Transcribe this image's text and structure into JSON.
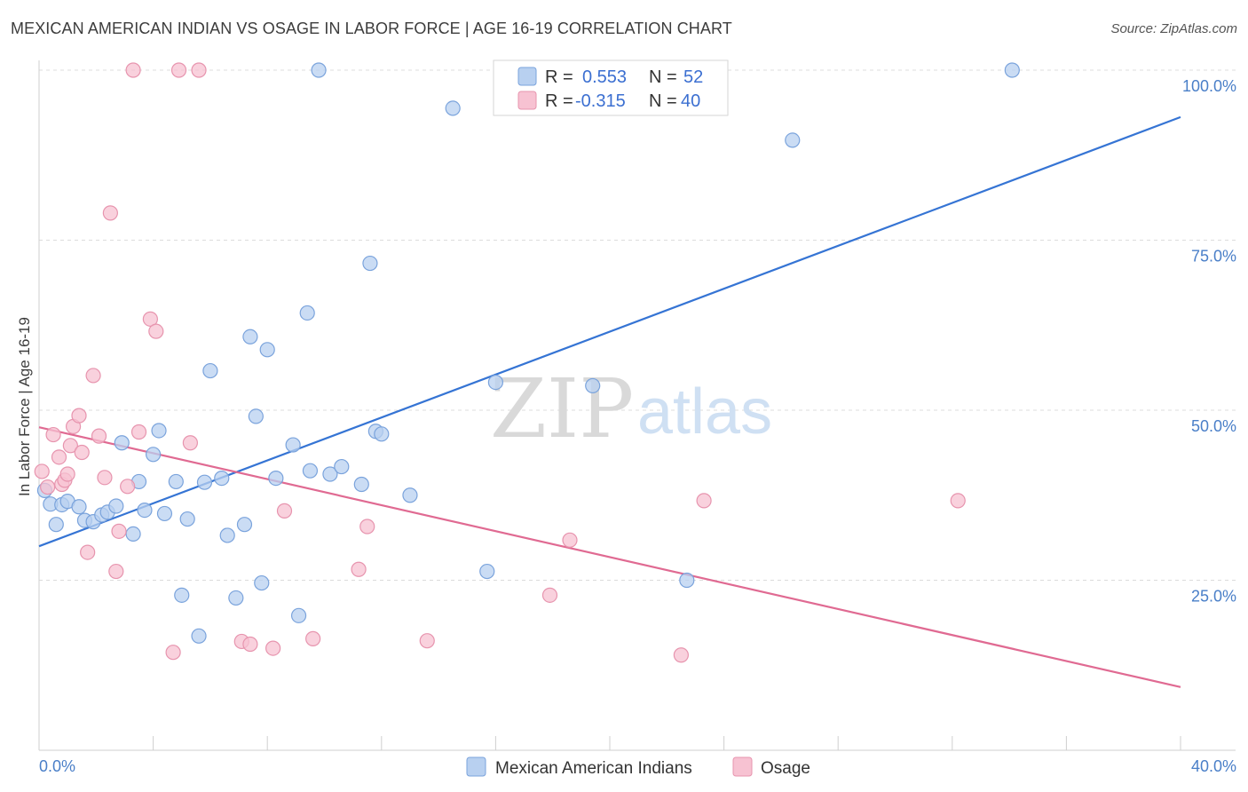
{
  "title": "MEXICAN AMERICAN INDIAN VS OSAGE IN LABOR FORCE | AGE 16-19 CORRELATION CHART",
  "source": "Source: ZipAtlas.com",
  "watermark": {
    "zip": "ZIP",
    "atlas": "atlas"
  },
  "colors": {
    "blue_fill": "#b8d0f0",
    "blue_stroke": "#7aa3dc",
    "blue_line": "#3574d4",
    "pink_fill": "#f7c2d2",
    "pink_stroke": "#e794ae",
    "pink_line": "#e06a92",
    "tick_text": "#4a7fc8",
    "grid": "#dcdcdc"
  },
  "legend": {
    "rows": [
      {
        "r_label": "R =",
        "r_value": "0.553",
        "n_label": "N =",
        "n_value": "52"
      },
      {
        "r_label": "R =",
        "r_value": "-0.315",
        "n_label": "N =",
        "n_value": "40"
      }
    ]
  },
  "chart_data": {
    "type": "scatter",
    "title": "MEXICAN AMERICAN INDIAN VS OSAGE IN LABOR FORCE | AGE 16-19 CORRELATION CHART",
    "xlabel": "",
    "ylabel": "In Labor Force | Age 16-19",
    "xlim": [
      0,
      40
    ],
    "ylim": [
      0,
      100
    ],
    "x_tick_labels": [
      "0.0%",
      "40.0%"
    ],
    "y_ticks": [
      25,
      50,
      75,
      100
    ],
    "y_tick_labels": [
      "25.0%",
      "50.0%",
      "75.0%",
      "100.0%"
    ],
    "series": [
      {
        "name": "Mexican American Indians",
        "trend": {
          "x": [
            0,
            40
          ],
          "y": [
            30.0,
            93.1
          ]
        },
        "points": [
          [
            0.2,
            38.2
          ],
          [
            0.4,
            36.2
          ],
          [
            0.6,
            33.2
          ],
          [
            0.8,
            36.1
          ],
          [
            1.0,
            36.6
          ],
          [
            1.4,
            35.8
          ],
          [
            1.6,
            33.8
          ],
          [
            1.9,
            33.6
          ],
          [
            2.2,
            34.6
          ],
          [
            2.4,
            35.0
          ],
          [
            2.7,
            35.9
          ],
          [
            2.9,
            45.2
          ],
          [
            3.3,
            31.8
          ],
          [
            3.5,
            39.5
          ],
          [
            3.7,
            35.3
          ],
          [
            4.0,
            43.5
          ],
          [
            4.2,
            47.0
          ],
          [
            4.4,
            34.8
          ],
          [
            4.8,
            39.5
          ],
          [
            5.0,
            22.8
          ],
          [
            5.2,
            34.0
          ],
          [
            5.6,
            16.8
          ],
          [
            5.8,
            39.4
          ],
          [
            6.0,
            55.8
          ],
          [
            6.4,
            40.0
          ],
          [
            6.6,
            31.6
          ],
          [
            6.9,
            22.4
          ],
          [
            7.2,
            33.2
          ],
          [
            7.4,
            60.8
          ],
          [
            7.6,
            49.1
          ],
          [
            7.8,
            24.6
          ],
          [
            8.0,
            58.9
          ],
          [
            8.3,
            40.0
          ],
          [
            8.9,
            44.9
          ],
          [
            9.1,
            19.8
          ],
          [
            9.4,
            64.3
          ],
          [
            9.8,
            100.0
          ],
          [
            9.5,
            41.1
          ],
          [
            10.2,
            40.6
          ],
          [
            10.6,
            41.7
          ],
          [
            11.3,
            39.1
          ],
          [
            11.8,
            46.9
          ],
          [
            11.6,
            71.6
          ],
          [
            12.0,
            46.5
          ],
          [
            13.0,
            37.5
          ],
          [
            14.5,
            94.4
          ],
          [
            16.0,
            54.1
          ],
          [
            15.7,
            26.3
          ],
          [
            19.4,
            53.6
          ],
          [
            22.7,
            25.0
          ],
          [
            26.4,
            89.7
          ],
          [
            34.1,
            100.0
          ]
        ]
      },
      {
        "name": "Osage",
        "trend": {
          "x": [
            0,
            40
          ],
          "y": [
            47.5,
            9.3
          ]
        },
        "points": [
          [
            0.1,
            41.0
          ],
          [
            0.3,
            38.7
          ],
          [
            0.5,
            46.4
          ],
          [
            0.7,
            43.1
          ],
          [
            0.8,
            39.1
          ],
          [
            0.9,
            39.7
          ],
          [
            1.0,
            40.6
          ],
          [
            1.1,
            44.8
          ],
          [
            1.2,
            47.6
          ],
          [
            1.4,
            49.2
          ],
          [
            1.5,
            43.8
          ],
          [
            1.7,
            29.1
          ],
          [
            1.9,
            55.1
          ],
          [
            2.1,
            46.2
          ],
          [
            2.3,
            40.1
          ],
          [
            2.5,
            79.0
          ],
          [
            2.7,
            26.3
          ],
          [
            2.8,
            32.2
          ],
          [
            3.1,
            38.8
          ],
          [
            3.3,
            100.0
          ],
          [
            3.5,
            46.8
          ],
          [
            3.9,
            63.4
          ],
          [
            4.1,
            61.6
          ],
          [
            4.7,
            14.4
          ],
          [
            4.9,
            100.0
          ],
          [
            5.3,
            45.2
          ],
          [
            5.6,
            100.0
          ],
          [
            7.1,
            16.0
          ],
          [
            7.4,
            15.6
          ],
          [
            8.2,
            15.0
          ],
          [
            8.6,
            35.2
          ],
          [
            9.6,
            16.4
          ],
          [
            11.2,
            26.6
          ],
          [
            11.5,
            32.9
          ],
          [
            13.6,
            16.1
          ],
          [
            17.9,
            22.8
          ],
          [
            18.6,
            30.9
          ],
          [
            22.5,
            14.0
          ],
          [
            23.3,
            36.7
          ],
          [
            32.2,
            36.7
          ]
        ]
      }
    ]
  }
}
